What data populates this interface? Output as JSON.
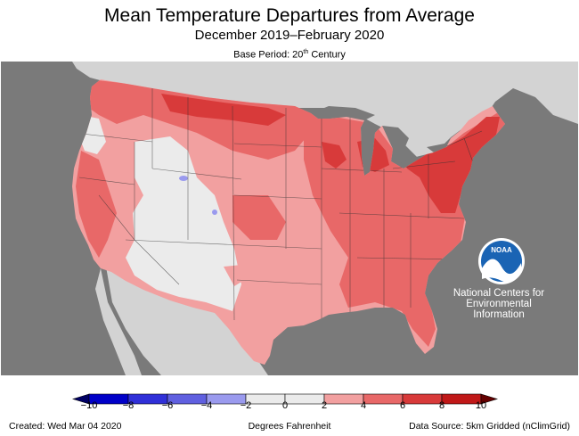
{
  "title": "Mean Temperature Departures from Average",
  "subtitle": "December 2019–February 2020",
  "base_period": {
    "prefix": "Base Period: 20",
    "superscript": "th",
    "suffix": " Century"
  },
  "logo": {
    "text": "NOAA",
    "icon": "noaa-logo-icon"
  },
  "agency": [
    "National Centers for",
    "Environmental",
    "Information"
  ],
  "colorbar": {
    "units": "Degrees Fahrenheit",
    "ticks": [
      "−10",
      "−8",
      "−6",
      "−4",
      "−2",
      "0",
      "2",
      "4",
      "6",
      "8",
      "10"
    ],
    "bins": [
      {
        "from": -10,
        "to": -8,
        "color": "#0000c8"
      },
      {
        "from": -8,
        "to": -6,
        "color": "#3030d8"
      },
      {
        "from": -6,
        "to": -4,
        "color": "#6060e0"
      },
      {
        "from": -4,
        "to": -2,
        "color": "#9a9aee"
      },
      {
        "from": -2,
        "to": 0,
        "color": "#ebebeb"
      },
      {
        "from": 0,
        "to": 2,
        "color": "#ebebeb"
      },
      {
        "from": 2,
        "to": 4,
        "color": "#f2a0a0"
      },
      {
        "from": 4,
        "to": 6,
        "color": "#e86868"
      },
      {
        "from": 6,
        "to": 8,
        "color": "#d83a3a"
      },
      {
        "from": 8,
        "to": 10,
        "color": "#c01818"
      }
    ],
    "under_color": "#000064",
    "over_color": "#640000"
  },
  "colors": {
    "ocean": "#7a7a7a",
    "foreign_land": "#d3d3d3",
    "near_normal": "#ebebeb",
    "warm_2_4": "#f2a0a0",
    "warm_4_6": "#e86868",
    "warm_6_8": "#d83a3a"
  },
  "footer": {
    "created": "Created: Wed Mar 04 2020",
    "source": "Data Source: 5km Gridded (nClimGrid)"
  }
}
